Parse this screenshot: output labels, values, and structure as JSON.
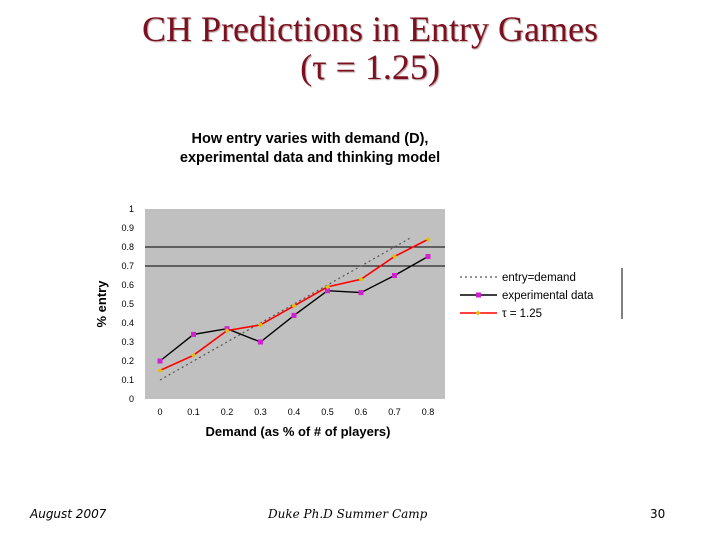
{
  "slide": {
    "title_line1": "CH Predictions in Entry Games",
    "title_line2": "(τ = 1.25)"
  },
  "footer": {
    "date": "August 2007",
    "event": "Duke Ph.D Summer Camp",
    "page_number": "30"
  },
  "colors": {
    "title": "#7a1020",
    "plot_background": "#c0c0c0",
    "entry_equals_demand": "#555555",
    "experimental_data": "#000000",
    "experimental_markers": "#d020d0",
    "model_line": "#ff0000",
    "model_markers": "#e0c000"
  },
  "chart_data": {
    "type": "line",
    "title_line1": "How entry varies with demand (D),",
    "title_line2": "experimental data and thinking model",
    "xlabel": "Demand (as % of # of players)",
    "ylabel": "% entry",
    "x": [
      0,
      0.1,
      0.2,
      0.3,
      0.4,
      0.5,
      0.6,
      0.7,
      0.8
    ],
    "x_tick_labels": [
      "0",
      "0.1",
      "0.2",
      "0.3",
      "0.4",
      "0.5",
      "0.6",
      "0.7",
      "0.8"
    ],
    "y_tick_labels": [
      "0",
      "0.1",
      "0.2",
      "0.3",
      "0.4",
      "0.5",
      "0.6",
      "0.7",
      "0.8",
      "0.9",
      "1"
    ],
    "ylim": [
      0,
      1
    ],
    "horizontal_gridlines": [
      0.7,
      0.8
    ],
    "legend_position": "right",
    "series": [
      {
        "name": "entry=demand",
        "style": "dotted",
        "values": [
          0.1,
          0.2,
          0.3,
          0.4,
          0.5,
          0.6,
          0.7,
          0.8,
          0.9
        ],
        "x_start": 0,
        "x_end": 0.75
      },
      {
        "name": "experimental data",
        "style": "solid",
        "marker": "square",
        "values": [
          0.2,
          0.34,
          0.37,
          0.3,
          0.44,
          0.57,
          0.56,
          0.65,
          0.75
        ]
      },
      {
        "name": "τ = 1.25",
        "style": "solid",
        "marker": "diamond",
        "values": [
          0.15,
          0.23,
          0.36,
          0.39,
          0.49,
          0.59,
          0.63,
          0.75,
          0.84
        ]
      }
    ]
  }
}
